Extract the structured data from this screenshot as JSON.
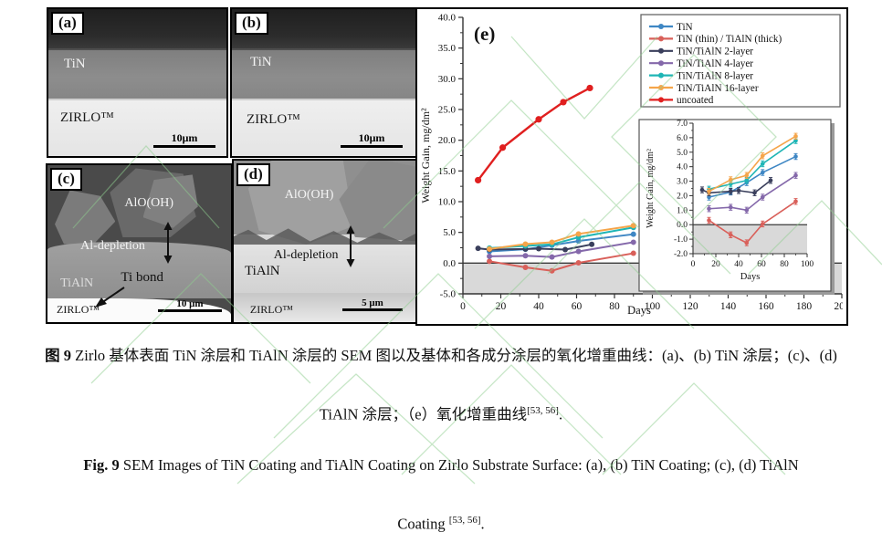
{
  "sem": {
    "a": {
      "label": "(a)",
      "coating": "TiN",
      "substrate": "ZIRLO™",
      "scale": "10μm"
    },
    "b": {
      "label": "(b)",
      "coating": "TiN",
      "substrate": "ZIRLO™",
      "scale": "10μm"
    },
    "c": {
      "label": "(c)",
      "oxide": "AlO(OH)",
      "depletion": "Al-depletion",
      "coating": "TiAlN",
      "bond": "Ti bond",
      "substrate": "ZIRLO™",
      "scale": "10 μm"
    },
    "d": {
      "label": "(d)",
      "oxide": "AlO(OH)",
      "depletion": "Al-depletion",
      "coating": "TiAlN",
      "substrate": "ZIRLO™",
      "scale": "5 μm"
    }
  },
  "chart_data": {
    "type": "line",
    "panel_label": "(e)",
    "xlabel": "Days",
    "ylabel": "Weight Gain, mg/dm²",
    "main_axes": {
      "xlim": [
        0,
        200
      ],
      "ylim": [
        -5,
        40
      ],
      "xtick_step": 20,
      "ytick_step": 5,
      "xminor_step": 10,
      "yminor_step": 2.5,
      "shaded_below": 0
    },
    "inset_axes": {
      "xlim": [
        0,
        100
      ],
      "ylim": [
        -2,
        7
      ],
      "xtick_step": 20,
      "ytick_step": 1,
      "xminor_step": 10,
      "yminor_step": 0.5,
      "shaded_below": 0
    },
    "legend_position": "upper right",
    "series": [
      {
        "name": "TiN",
        "color": "#3f87c4",
        "days": [
          14,
          33,
          47,
          61,
          90
        ],
        "values": [
          1.9,
          2.25,
          2.9,
          3.6,
          4.7
        ],
        "in_inset": true
      },
      {
        "name": "TiN (thin) / TiAlN (thick)",
        "color": "#d9605a",
        "days": [
          14,
          33,
          47,
          61,
          90
        ],
        "values": [
          0.3,
          -0.7,
          -1.25,
          0.05,
          1.6
        ],
        "in_inset": true
      },
      {
        "name": "TiN/TiAlN 2-layer",
        "color": "#3a3f5c",
        "days": [
          8,
          14,
          33,
          40,
          54,
          68
        ],
        "values": [
          2.4,
          2.2,
          2.3,
          2.35,
          2.2,
          3.05
        ],
        "in_inset": true
      },
      {
        "name": "TiN/TiAlN 4-layer",
        "color": "#8468aa",
        "days": [
          14,
          33,
          47,
          61,
          90
        ],
        "values": [
          1.1,
          1.2,
          1.0,
          1.9,
          3.4
        ],
        "in_inset": true
      },
      {
        "name": "TiN/TiAlN 8-layer",
        "color": "#1fb5b5",
        "days": [
          14,
          33,
          47,
          61,
          90
        ],
        "values": [
          2.45,
          2.8,
          3.05,
          4.2,
          5.8
        ],
        "in_inset": true
      },
      {
        "name": "TiN/TiAlN 16-layer",
        "color": "#f5a54a",
        "days": [
          14,
          33,
          47,
          61,
          90
        ],
        "values": [
          2.3,
          3.1,
          3.4,
          4.75,
          6.1
        ],
        "in_inset": true
      },
      {
        "name": "uncoated",
        "color": "#e01f1f",
        "days": [
          8,
          21,
          40,
          53,
          67
        ],
        "values": [
          13.5,
          18.8,
          23.4,
          26.2,
          28.5
        ],
        "in_inset": false
      }
    ],
    "error_bar": 0.2,
    "shade_color": "#d9d9d9",
    "watermark_color": "#8fce8f"
  },
  "caption": {
    "zh_label": "图 9",
    "zh_line1": "Zirlo 基体表面 TiN 涂层和 TiAlN 涂层的 SEM 图以及基体和各成分涂层的氧化增重曲线：(a)、(b) TiN 涂层；(c)、(d)",
    "zh_line2": "TiAlN 涂层；（e）氧化增重曲线",
    "en_label": "Fig. 9",
    "en_line1": "SEM Images of TiN Coating and TiAlN Coating on Zirlo Substrate Surface: (a), (b) TiN Coating; (c), (d) TiAlN",
    "en_line2": "Coating ",
    "citation": "[53, 56]",
    "period": "."
  }
}
